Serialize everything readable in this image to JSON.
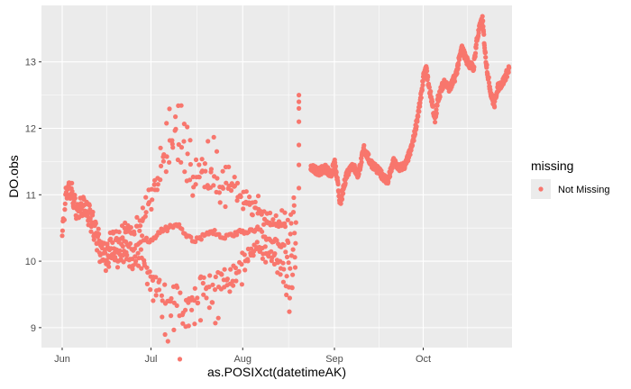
{
  "chart_data": {
    "type": "scatter",
    "title": "",
    "xlabel": "as.POSIXct(datetimeAK)",
    "ylabel": "DO.obs",
    "x_tick_labels": [
      "Jun",
      "Jul",
      "Aug",
      "Sep",
      "Oct"
    ],
    "x_tick_dates": [
      "2019-06-01",
      "2019-07-01",
      "2019-08-01",
      "2019-09-01",
      "2019-10-01"
    ],
    "xlim": [
      "2019-05-25",
      "2019-10-31"
    ],
    "y_ticks": [
      9,
      10,
      11,
      12,
      13
    ],
    "y_tick_labels": [
      "9",
      "10",
      "11",
      "12",
      "13"
    ],
    "ylim": [
      8.7,
      13.85
    ],
    "grid": true,
    "legend": {
      "title": "missing",
      "entries": [
        "Not Missing"
      ],
      "placement": "right"
    },
    "colors": {
      "series": "#f8766d",
      "panel": "#ebebeb",
      "grid": "#ffffff"
    },
    "series": [
      {
        "name": "Not Missing",
        "trend": [
          [
            "2019-06-01",
            10.35
          ],
          [
            "2019-06-02",
            10.9
          ],
          [
            "2019-06-03",
            11.1
          ],
          [
            "2019-06-04",
            11.05
          ],
          [
            "2019-06-06",
            10.75
          ],
          [
            "2019-06-08",
            10.85
          ],
          [
            "2019-06-10",
            10.7
          ],
          [
            "2019-06-12",
            10.5
          ],
          [
            "2019-06-14",
            10.2
          ],
          [
            "2019-06-16",
            10.05
          ],
          [
            "2019-06-18",
            10.25
          ],
          [
            "2019-06-20",
            10.15
          ],
          [
            "2019-06-22",
            10.3
          ],
          [
            "2019-06-25",
            10.2
          ],
          [
            "2019-06-28",
            10.35
          ],
          [
            "2019-07-01",
            10.3
          ],
          [
            "2019-07-04",
            10.45
          ],
          [
            "2019-07-07",
            10.5
          ],
          [
            "2019-07-10",
            10.55
          ],
          [
            "2019-07-13",
            10.4
          ],
          [
            "2019-07-16",
            10.3
          ],
          [
            "2019-07-19",
            10.4
          ],
          [
            "2019-07-22",
            10.45
          ],
          [
            "2019-07-25",
            10.35
          ],
          [
            "2019-07-28",
            10.4
          ],
          [
            "2019-07-31",
            10.45
          ],
          [
            "2019-08-03",
            10.45
          ],
          [
            "2019-08-06",
            10.5
          ],
          [
            "2019-08-09",
            10.35
          ],
          [
            "2019-08-12",
            10.3
          ],
          [
            "2019-08-15",
            10.2
          ],
          [
            "2019-08-17",
            9.9
          ],
          [
            "2019-08-18",
            10.2
          ],
          [
            "2019-08-19",
            10.6
          ]
        ],
        "amplitude": [
          [
            "2019-06-01",
            0.1
          ],
          [
            "2019-06-10",
            0.15
          ],
          [
            "2019-06-20",
            0.2
          ],
          [
            "2019-06-28",
            0.35
          ],
          [
            "2019-07-02",
            0.9
          ],
          [
            "2019-07-06",
            1.4
          ],
          [
            "2019-07-09",
            1.65
          ],
          [
            "2019-07-12",
            1.55
          ],
          [
            "2019-07-15",
            1.2
          ],
          [
            "2019-07-18",
            1.1
          ],
          [
            "2019-07-22",
            1.2
          ],
          [
            "2019-07-25",
            0.9
          ],
          [
            "2019-07-28",
            0.95
          ],
          [
            "2019-08-01",
            0.6
          ],
          [
            "2019-08-05",
            0.4
          ],
          [
            "2019-08-10",
            0.3
          ],
          [
            "2019-08-15",
            0.5
          ],
          [
            "2019-08-18",
            0.7
          ],
          [
            "2019-08-19",
            0.4
          ]
        ],
        "isolated_points": [
          [
            "2019-08-20",
            11.1
          ],
          [
            "2019-08-20",
            11.45
          ],
          [
            "2019-08-20",
            11.75
          ],
          [
            "2019-08-20",
            12.1
          ],
          [
            "2019-08-20",
            12.3
          ],
          [
            "2019-08-20",
            12.4
          ],
          [
            "2019-08-20",
            12.5
          ]
        ],
        "continuous": [
          [
            "2019-08-24",
            11.4
          ],
          [
            "2019-08-27",
            11.35
          ],
          [
            "2019-08-29",
            11.4
          ],
          [
            "2019-08-31",
            11.3
          ],
          [
            "2019-09-01",
            11.5
          ],
          [
            "2019-09-02",
            11.2
          ],
          [
            "2019-09-03",
            10.85
          ],
          [
            "2019-09-05",
            11.3
          ],
          [
            "2019-09-07",
            11.45
          ],
          [
            "2019-09-09",
            11.3
          ],
          [
            "2019-09-11",
            11.7
          ],
          [
            "2019-09-13",
            11.5
          ],
          [
            "2019-09-15",
            11.4
          ],
          [
            "2019-09-17",
            11.3
          ],
          [
            "2019-09-19",
            11.2
          ],
          [
            "2019-09-21",
            11.5
          ],
          [
            "2019-09-23",
            11.4
          ],
          [
            "2019-09-25",
            11.45
          ],
          [
            "2019-09-27",
            11.7
          ],
          [
            "2019-09-28",
            11.9
          ],
          [
            "2019-09-30",
            12.4
          ],
          [
            "2019-10-01",
            12.75
          ],
          [
            "2019-10-02",
            12.9
          ],
          [
            "2019-10-03",
            12.6
          ],
          [
            "2019-10-04",
            12.4
          ],
          [
            "2019-10-05",
            12.1
          ],
          [
            "2019-10-06",
            12.45
          ],
          [
            "2019-10-08",
            12.7
          ],
          [
            "2019-10-10",
            12.6
          ],
          [
            "2019-10-12",
            12.8
          ],
          [
            "2019-10-14",
            13.2
          ],
          [
            "2019-10-16",
            13.0
          ],
          [
            "2019-10-18",
            12.9
          ],
          [
            "2019-10-19",
            13.3
          ],
          [
            "2019-10-20",
            13.5
          ],
          [
            "2019-10-21",
            13.65
          ],
          [
            "2019-10-22",
            13.1
          ],
          [
            "2019-10-23",
            12.75
          ],
          [
            "2019-10-24",
            12.5
          ],
          [
            "2019-10-25",
            12.35
          ],
          [
            "2019-10-26",
            12.6
          ],
          [
            "2019-10-27",
            12.65
          ],
          [
            "2019-10-28",
            12.7
          ],
          [
            "2019-10-29",
            12.8
          ],
          [
            "2019-10-30",
            12.9
          ]
        ]
      }
    ]
  }
}
